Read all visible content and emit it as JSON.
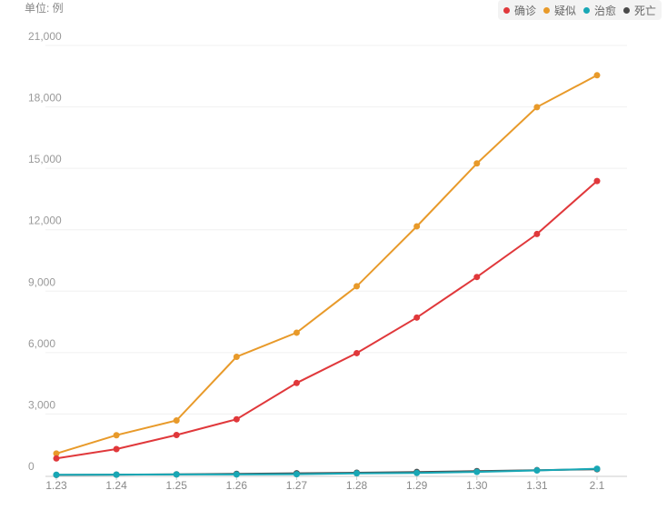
{
  "unit_label": "单位: 例",
  "chart_data": {
    "type": "line",
    "categories": [
      "1.23",
      "1.24",
      "1.25",
      "1.26",
      "1.27",
      "1.28",
      "1.29",
      "1.30",
      "1.31",
      "2.1"
    ],
    "ylim": [
      0,
      21000
    ],
    "yticks": [
      0,
      3000,
      6000,
      9000,
      12000,
      15000,
      18000,
      21000
    ],
    "ytick_labels": [
      "0",
      "3,000",
      "6,000",
      "9,000",
      "12,000",
      "15,000",
      "18,000",
      "21,000"
    ],
    "grid": true,
    "legend_position": "top-right",
    "series": [
      {
        "name": "确诊",
        "color": "#e0383b",
        "values": [
          830,
          1287,
          1975,
          2744,
          4515,
          5974,
          7711,
          9692,
          11791,
          14380
        ]
      },
      {
        "name": "疑似",
        "color": "#e89a2a",
        "values": [
          1072,
          1965,
          2684,
          5794,
          6973,
          9239,
          12167,
          15238,
          17988,
          19544
        ]
      },
      {
        "name": "治愈",
        "color": "#18a7b5",
        "values": [
          34,
          38,
          49,
          51,
          60,
          103,
          124,
          171,
          243,
          328
        ]
      },
      {
        "name": "死亡",
        "color": "#4a4a4a",
        "values": [
          25,
          41,
          56,
          80,
          106,
          132,
          170,
          213,
          259,
          304
        ]
      }
    ]
  }
}
